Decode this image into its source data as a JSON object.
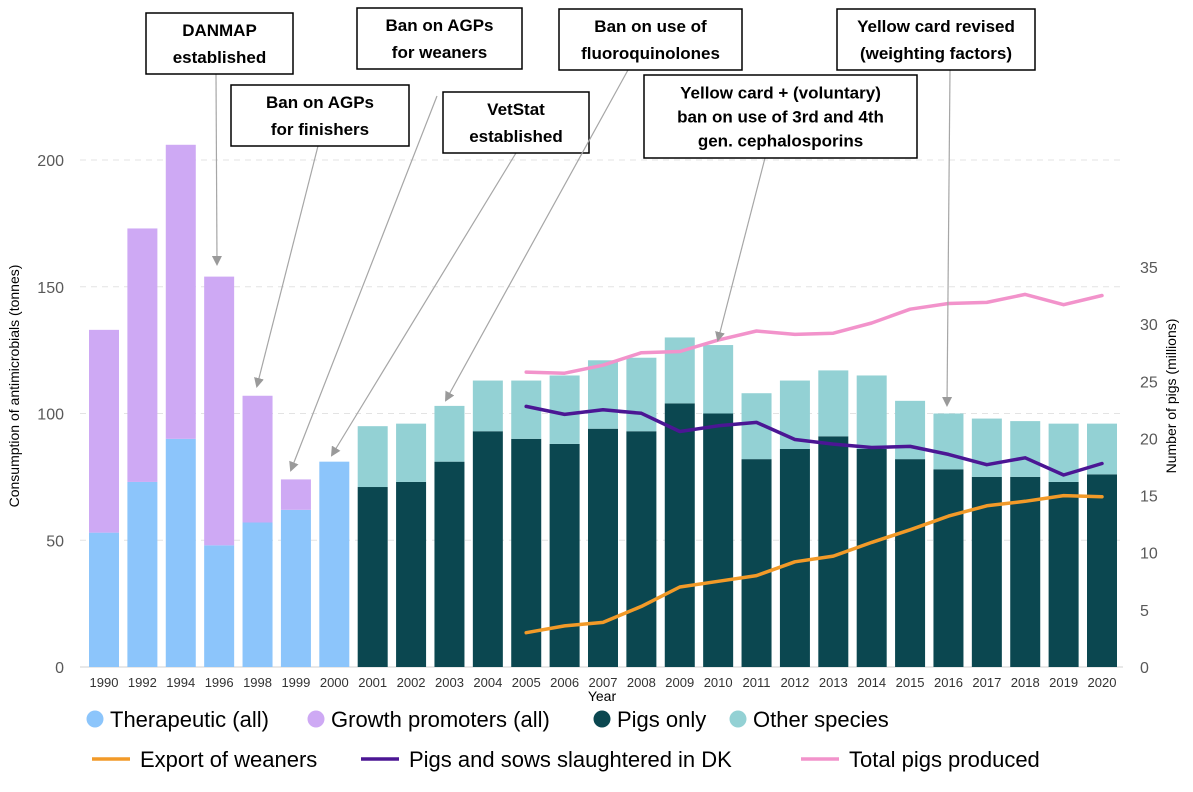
{
  "chart_data": {
    "type": "bar",
    "title": "",
    "xlabel": "Year",
    "ylabel": "Consumption of antimicrobials (tonnes)",
    "y2label": "Number of pigs (millions)",
    "ylim": [
      0,
      220
    ],
    "y2lim": [
      0,
      35
    ],
    "yticks": [
      "0",
      "50",
      "100",
      "150",
      "200"
    ],
    "y2ticks": [
      "0",
      "5",
      "10",
      "15",
      "20",
      "25",
      "30",
      "35"
    ],
    "categories": [
      "1990",
      "1992",
      "1994",
      "1996",
      "1998",
      "1999",
      "2000",
      "2001",
      "2002",
      "2003",
      "2004",
      "2005",
      "2006",
      "2007",
      "2008",
      "2009",
      "2010",
      "2011",
      "2012",
      "2013",
      "2014",
      "2015",
      "2016",
      "2017",
      "2018",
      "2019",
      "2020"
    ],
    "bar_series": [
      {
        "name": "Therapeutic (all)",
        "color": "#8cc5fb",
        "values": [
          53,
          73,
          90,
          48,
          57,
          62,
          81,
          null,
          null,
          null,
          null,
          null,
          null,
          null,
          null,
          null,
          null,
          null,
          null,
          null,
          null,
          null,
          null,
          null,
          null,
          null,
          null
        ]
      },
      {
        "name": "Growth promoters (all)",
        "color": "#cea9f4",
        "values": [
          80,
          100,
          116,
          106,
          50,
          12,
          0,
          null,
          null,
          null,
          null,
          null,
          null,
          null,
          null,
          null,
          null,
          null,
          null,
          null,
          null,
          null,
          null,
          null,
          null,
          null,
          null
        ]
      },
      {
        "name": "Pigs only",
        "color": "#0b4750",
        "values": [
          null,
          null,
          null,
          null,
          null,
          null,
          null,
          71,
          73,
          81,
          93,
          90,
          88,
          94,
          93,
          104,
          100,
          82,
          86,
          91,
          86,
          82,
          78,
          75,
          75,
          73,
          76
        ]
      },
      {
        "name": "Other species",
        "color": "#93d1d4",
        "values": [
          null,
          null,
          null,
          null,
          null,
          null,
          null,
          24,
          23,
          22,
          20,
          23,
          27,
          27,
          29,
          26,
          27,
          26,
          27,
          26,
          29,
          23,
          22,
          23,
          22,
          23,
          20
        ]
      }
    ],
    "line_series": [
      {
        "name": "Export of weaners",
        "color": "#f29a28",
        "axis": "right",
        "start_index": 11,
        "values": [
          3.0,
          3.6,
          3.9,
          5.3,
          7.0,
          7.5,
          8.0,
          9.2,
          9.7,
          10.9,
          12.0,
          13.2,
          14.1,
          14.5,
          15.0,
          14.9
        ]
      },
      {
        "name": "Pigs and sows slaughtered in DK",
        "color": "#4b1694",
        "axis": "right",
        "start_index": 11,
        "values": [
          22.8,
          22.1,
          22.5,
          22.2,
          20.6,
          21.1,
          21.4,
          19.9,
          19.5,
          19.2,
          19.3,
          18.6,
          17.7,
          18.3,
          16.8,
          17.8
        ]
      },
      {
        "name": "Total pigs produced",
        "color": "#f293cb",
        "axis": "right",
        "start_index": 11,
        "values": [
          25.8,
          25.7,
          26.4,
          27.5,
          27.6,
          28.6,
          29.4,
          29.1,
          29.2,
          30.1,
          31.3,
          31.8,
          31.9,
          32.6,
          31.7,
          32.5
        ]
      }
    ],
    "annotations": [
      {
        "lines": [
          "DANMAP",
          "established"
        ],
        "target": "1996"
      },
      {
        "lines": [
          "Ban on AGPs",
          "for finishers"
        ],
        "target": "1998"
      },
      {
        "lines": [
          "Ban on AGPs",
          "for weaners"
        ],
        "target": "1999"
      },
      {
        "lines": [
          "VetStat",
          "established"
        ],
        "target": "2000"
      },
      {
        "lines": [
          "Ban on use of",
          "fluoroquinolones"
        ],
        "target": "2003"
      },
      {
        "lines": [
          "Yellow card + (voluntary)",
          "ban on use of 3rd and 4th",
          "gen. cephalosporins"
        ],
        "target": "2010"
      },
      {
        "lines": [
          "Yellow card revised",
          "(weighting factors)"
        ],
        "target": "2016"
      }
    ],
    "legend": "bottom"
  }
}
